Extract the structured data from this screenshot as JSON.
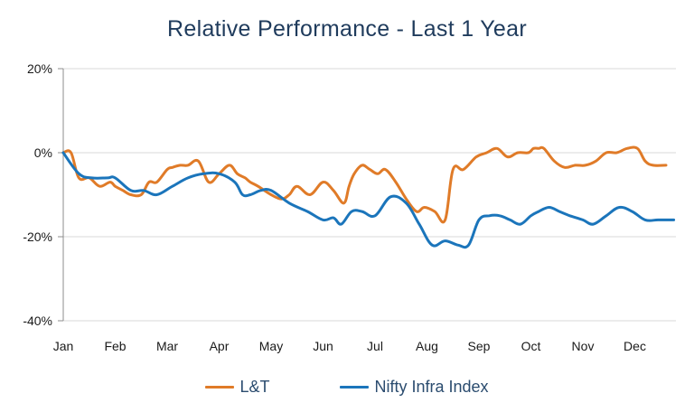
{
  "chart_data": {
    "type": "line",
    "title": "Relative Performance - Last 1 Year",
    "xlabel": "",
    "ylabel": "",
    "categories": [
      "Jan",
      "Feb",
      "Mar",
      "Apr",
      "May",
      "Jun",
      "Jul",
      "Aug",
      "Sep",
      "Oct",
      "Nov",
      "Dec"
    ],
    "y_ticks": [
      "20%",
      "0%",
      "-20%",
      "-40%"
    ],
    "ylim": [
      -40,
      20
    ],
    "xlim": [
      0,
      11.8
    ],
    "grid": "horizontal",
    "legend_position": "bottom",
    "series": [
      {
        "name": "L&T",
        "color": "#e07b28",
        "x": [
          0,
          0.15,
          0.3,
          0.5,
          0.7,
          0.9,
          1.0,
          1.15,
          1.3,
          1.5,
          1.65,
          1.8,
          2.0,
          2.1,
          2.25,
          2.4,
          2.6,
          2.8,
          3.0,
          3.2,
          3.35,
          3.5,
          3.6,
          3.75,
          4.0,
          4.2,
          4.35,
          4.5,
          4.75,
          5.0,
          5.2,
          5.4,
          5.5,
          5.6,
          5.75,
          5.9,
          6.05,
          6.2,
          6.4,
          6.6,
          6.8,
          6.95,
          7.15,
          7.35,
          7.5,
          7.7,
          7.95,
          8.15,
          8.35,
          8.55,
          8.75,
          8.95,
          9.05,
          9.15,
          9.25,
          9.45,
          9.65,
          9.85,
          10.05,
          10.25,
          10.45,
          10.65,
          10.85,
          11.05,
          11.2,
          11.35,
          11.6
        ],
        "values": [
          0,
          0,
          -6,
          -6,
          -8,
          -7,
          -8,
          -9,
          -10,
          -10,
          -7,
          -7,
          -4,
          -3.5,
          -3,
          -3,
          -2,
          -7,
          -5,
          -3,
          -5,
          -6,
          -7,
          -8,
          -10,
          -11,
          -10,
          -8,
          -10,
          -7,
          -9,
          -12,
          -8,
          -5,
          -3,
          -4,
          -5,
          -4,
          -7,
          -11,
          -14,
          -13,
          -14,
          -16,
          -4,
          -4,
          -1,
          0,
          1,
          -1,
          0,
          0,
          1,
          1,
          1,
          -2,
          -3.5,
          -3,
          -3,
          -2,
          0,
          0,
          1,
          1,
          -2,
          -3,
          -3
        ],
        "values_note": ""
      },
      {
        "name": "Nifty Infra Index",
        "color": "#1b75bb",
        "x": [
          0,
          0.3,
          0.55,
          0.85,
          1.0,
          1.3,
          1.55,
          1.8,
          2.1,
          2.4,
          2.7,
          3.0,
          3.3,
          3.45,
          3.6,
          3.8,
          4.0,
          4.35,
          4.7,
          5.0,
          5.2,
          5.35,
          5.55,
          5.75,
          6.0,
          6.3,
          6.6,
          6.85,
          7.1,
          7.35,
          7.6,
          7.8,
          8.0,
          8.2,
          8.4,
          8.6,
          8.8,
          9.0,
          9.15,
          9.35,
          9.55,
          9.75,
          10.0,
          10.2,
          10.45,
          10.7,
          10.95,
          11.2,
          11.45,
          11.75
        ],
        "values": [
          0,
          -5,
          -6,
          -6,
          -6,
          -9,
          -9,
          -10,
          -8,
          -6,
          -5,
          -5,
          -7,
          -10,
          -10,
          -9,
          -9,
          -12,
          -14,
          -16,
          -15.5,
          -17,
          -14,
          -14,
          -15,
          -10.5,
          -12,
          -17,
          -22,
          -21,
          -22,
          -22,
          -16,
          -15,
          -15,
          -16,
          -17,
          -15,
          -14,
          -13,
          -14,
          -15,
          -16,
          -17,
          -15,
          -13,
          -14,
          -16,
          -16,
          -16
        ]
      }
    ]
  }
}
